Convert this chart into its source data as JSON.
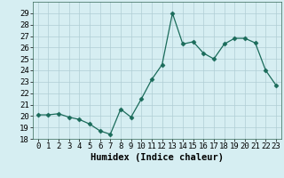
{
  "x": [
    0,
    1,
    2,
    3,
    4,
    5,
    6,
    7,
    8,
    9,
    10,
    11,
    12,
    13,
    14,
    15,
    16,
    17,
    18,
    19,
    20,
    21,
    22,
    23
  ],
  "y": [
    20.1,
    20.1,
    20.2,
    19.9,
    19.7,
    19.3,
    18.7,
    18.4,
    20.6,
    19.9,
    21.5,
    23.2,
    24.5,
    29.0,
    26.3,
    26.5,
    25.5,
    25.0,
    26.3,
    26.8,
    26.8,
    26.4,
    24.0,
    22.7
  ],
  "line_color": "#1a6b5a",
  "marker": "D",
  "marker_size": 2.5,
  "bg_color": "#d6eef2",
  "grid_color": "#b0cdd4",
  "xlabel": "Humidex (Indice chaleur)",
  "ylim": [
    18,
    30
  ],
  "xlim": [
    -0.5,
    23.5
  ],
  "yticks": [
    18,
    19,
    20,
    21,
    22,
    23,
    24,
    25,
    26,
    27,
    28,
    29
  ],
  "xticks": [
    0,
    1,
    2,
    3,
    4,
    5,
    6,
    7,
    8,
    9,
    10,
    11,
    12,
    13,
    14,
    15,
    16,
    17,
    18,
    19,
    20,
    21,
    22,
    23
  ],
  "tick_fontsize": 6.5,
  "xlabel_fontsize": 7.5
}
